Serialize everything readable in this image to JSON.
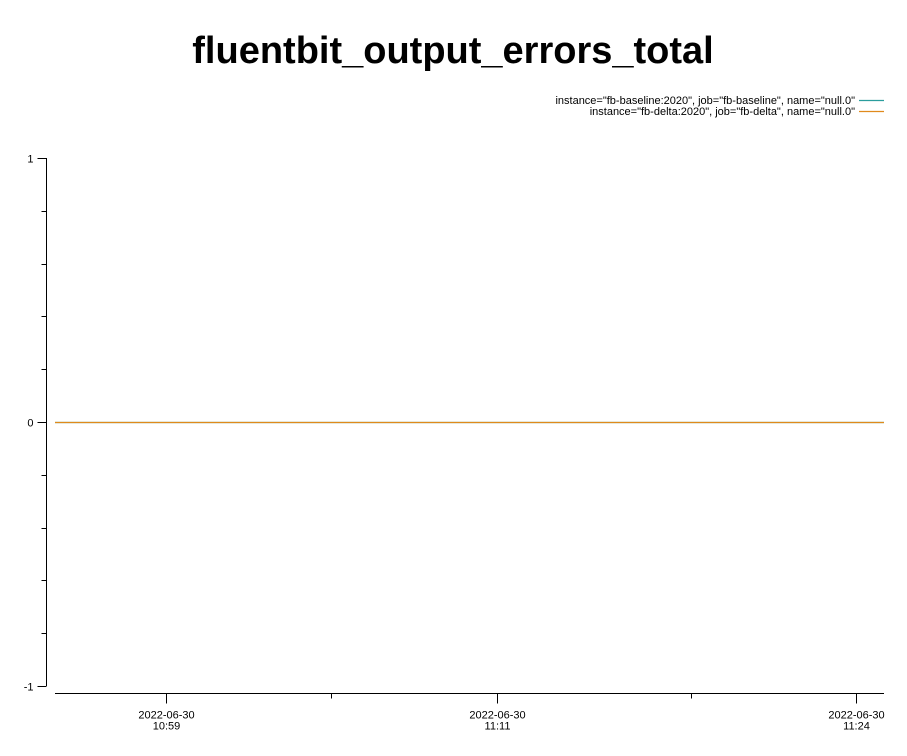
{
  "chart_data": {
    "type": "line",
    "title": "fluentbit_output_errors_total",
    "xlabel": "",
    "ylabel": "",
    "x_start": "2022-06-30 10:55",
    "x_end": "2022-06-30 11:25",
    "ylim": [
      -1,
      1
    ],
    "y_ticks": [
      {
        "value": -1,
        "label": "-1"
      },
      {
        "value": 0,
        "label": "0"
      },
      {
        "value": 1,
        "label": "1"
      }
    ],
    "y_minor_ticks": [
      -0.8,
      -0.6,
      -0.4,
      -0.2,
      0.2,
      0.4,
      0.6,
      0.8
    ],
    "x_ticks": [
      {
        "value": "2022-06-30 10:59",
        "date": "2022-06-30",
        "time": "10:59"
      },
      {
        "value": "2022-06-30 11:11",
        "date": "2022-06-30",
        "time": "11:11"
      },
      {
        "value": "2022-06-30 11:24",
        "date": "2022-06-30",
        "time": "11:24"
      }
    ],
    "x_minor_ticks": [
      "2022-06-30 11:05",
      "2022-06-30 11:18"
    ],
    "legend_position": "top-right",
    "grid": false,
    "series": [
      {
        "name": "instance=\"fb-baseline:2020\", job=\"fb-baseline\", name=\"null.0\"",
        "color": "#2a9d9d",
        "x": [
          "2022-06-30 10:55",
          "2022-06-30 11:25"
        ],
        "y": [
          0,
          0
        ]
      },
      {
        "name": "instance=\"fb-delta:2020\", job=\"fb-delta\", name=\"null.0\"",
        "color": "#e08a1c",
        "x": [
          "2022-06-30 10:55",
          "2022-06-30 11:25"
        ],
        "y": [
          0,
          0
        ]
      }
    ]
  }
}
